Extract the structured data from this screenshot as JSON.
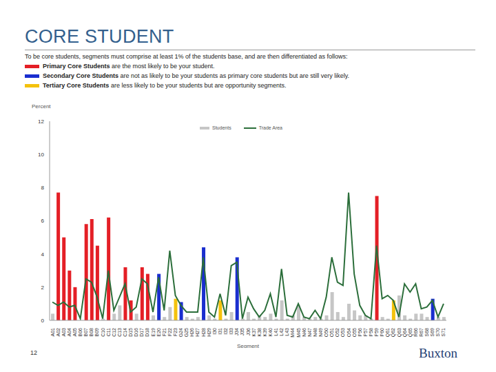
{
  "title": "CORE STUDENT",
  "description": "To be core students, segments must comprise at least 1% of the students base, and are then differentiated as follows:",
  "key": [
    {
      "term": "Primary Core Students",
      "text": "are the most likely to be your student.",
      "color": "#e41f26"
    },
    {
      "term": "Secondary Core Students",
      "text": "are not as likely to be your students as primary core students but are still very likely.",
      "color": "#1a2ecf"
    },
    {
      "term": "Tertiary Core Students",
      "text": "are less likely to be your students but are opportunity segments.",
      "color": "#f4c20d"
    }
  ],
  "page_number": 12,
  "logo_text": "Buxton",
  "chart_data": {
    "type": "bar",
    "y_label": "Percent",
    "x_label": "Segment",
    "categories": [
      "A01",
      "A02",
      "A03",
      "A04",
      "A05",
      "B06",
      "B07",
      "B08",
      "B09",
      "C10",
      "C11",
      "C12",
      "C13",
      "C14",
      "D15",
      "D16",
      "D17",
      "D18",
      "E19",
      "E20",
      "F21",
      "F22",
      "F23",
      "G24",
      "G25",
      "H26",
      "H27",
      "H28",
      "H29",
      "I30",
      "I31",
      "I32",
      "I33",
      "J34",
      "J35",
      "J36",
      "K37",
      "K38",
      "K39",
      "K40",
      "L41",
      "L42",
      "L43",
      "M44",
      "M45",
      "N46",
      "N47",
      "N48",
      "N49",
      "O50",
      "O51",
      "O52",
      "O53",
      "O54",
      "O55",
      "P56",
      "P57",
      "P58",
      "P59",
      "P60",
      "Q61",
      "Q62",
      "Q63",
      "Q64",
      "Q65",
      "R66",
      "R67",
      "S68",
      "S69",
      "S70",
      "S71"
    ],
    "series": [
      {
        "name": "Students",
        "type": "bar",
        "color": "#c6c6c6",
        "colors": [
          "#c6c6c6",
          "#e41f26",
          "#e41f26",
          "#e41f26",
          "#e41f26",
          "#c6c6c6",
          "#e41f26",
          "#e41f26",
          "#e41f26",
          "#c6c6c6",
          "#e41f26",
          "#c6c6c6",
          "#c6c6c6",
          "#e41f26",
          "#e41f26",
          "#c6c6c6",
          "#e41f26",
          "#e41f26",
          "#c6c6c6",
          "#1a2ecf",
          "#c6c6c6",
          "#c6c6c6",
          "#f4c20d",
          "#1a2ecf",
          "#c6c6c6",
          "#c6c6c6",
          "#c6c6c6",
          "#1a2ecf",
          "#c6c6c6",
          "#c6c6c6",
          "#f4c20d",
          "#c6c6c6",
          "#c6c6c6",
          "#1a2ecf",
          "#c6c6c6",
          "#c6c6c6",
          "#c6c6c6",
          "#c6c6c6",
          "#c6c6c6",
          "#c6c6c6",
          "#c6c6c6",
          "#c6c6c6",
          "#c6c6c6",
          "#c6c6c6",
          "#c6c6c6",
          "#c6c6c6",
          "#c6c6c6",
          "#c6c6c6",
          "#c6c6c6",
          "#c6c6c6",
          "#c6c6c6",
          "#c6c6c6",
          "#c6c6c6",
          "#c6c6c6",
          "#c6c6c6",
          "#c6c6c6",
          "#c6c6c6",
          "#c6c6c6",
          "#e41f26",
          "#c6c6c6",
          "#c6c6c6",
          "#f4c20d",
          "#c6c6c6",
          "#c6c6c6",
          "#c6c6c6",
          "#c6c6c6",
          "#c6c6c6",
          "#c6c6c6",
          "#1a2ecf",
          "#c6c6c6",
          "#c6c6c6"
        ],
        "values": [
          0.4,
          7.7,
          5.0,
          3.0,
          2.0,
          0.0,
          5.8,
          6.1,
          4.5,
          0.1,
          6.2,
          0.4,
          0.9,
          3.2,
          1.2,
          0.4,
          3.2,
          2.8,
          0.3,
          2.8,
          0.2,
          0.8,
          1.3,
          1.1,
          0.2,
          0.1,
          0.2,
          4.4,
          0.3,
          0.1,
          1.2,
          0.1,
          0.5,
          3.8,
          0.1,
          0.5,
          0.1,
          0.3,
          0.2,
          0.4,
          0.1,
          1.2,
          0.1,
          0.3,
          0.9,
          0.2,
          0.1,
          0.2,
          0.1,
          0.3,
          1.7,
          0.5,
          0.2,
          1.0,
          0.6,
          0.3,
          0.3,
          0.1,
          7.5,
          0.2,
          0.1,
          1.2,
          1.5,
          0.3,
          0.1,
          0.4,
          0.4,
          0.2,
          1.3,
          0.2,
          0.2
        ]
      },
      {
        "name": "Trade Area",
        "type": "line",
        "color": "#2b6e3a",
        "values": [
          1.1,
          0.9,
          1.1,
          0.8,
          0.9,
          0.1,
          2.5,
          2.3,
          1.4,
          0.1,
          3.0,
          0.6,
          1.4,
          2.2,
          0.5,
          0.8,
          2.5,
          2.2,
          0.5,
          2.6,
          0.6,
          4.2,
          1.5,
          0.9,
          0.5,
          0.5,
          0.5,
          3.8,
          0.5,
          0.2,
          1.6,
          0.3,
          3.3,
          3.5,
          0.1,
          1.4,
          0.7,
          0.2,
          0.6,
          1.6,
          0.2,
          3.1,
          0.3,
          0.2,
          1.0,
          0.2,
          0.1,
          0.6,
          0.1,
          1.4,
          3.8,
          2.3,
          2.1,
          7.7,
          2.8,
          0.9,
          0.3,
          0.1,
          4.5,
          1.3,
          1.5,
          1.2,
          0.2,
          2.2,
          1.7,
          2.2,
          0.7,
          0.8,
          1.2,
          0.2,
          1.0
        ]
      }
    ],
    "ylim": [
      0,
      12
    ],
    "yticks": [
      0,
      2,
      4,
      6,
      8,
      10,
      12
    ],
    "grid": false,
    "legend": "top"
  }
}
